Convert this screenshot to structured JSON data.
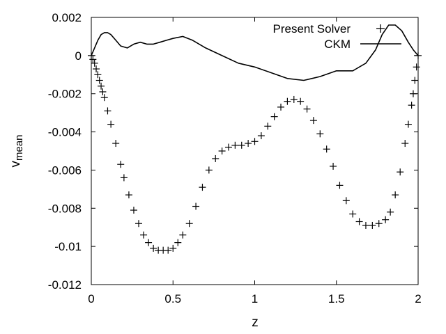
{
  "chart_data": {
    "type": "line",
    "xlabel": "z",
    "ylabel_main": "v",
    "ylabel_sub": "mean",
    "xlim": [
      0,
      2
    ],
    "ylim": [
      -0.012,
      0.002
    ],
    "xticks": [
      0,
      0.5,
      1,
      1.5,
      2
    ],
    "xtick_labels": [
      "0",
      "0.5",
      "1",
      "1.5",
      "2"
    ],
    "yticks": [
      0.002,
      0,
      -0.002,
      -0.004,
      -0.006,
      -0.008,
      -0.01,
      -0.012
    ],
    "ytick_labels": [
      "0.002",
      "0",
      "-0.002",
      "-0.004",
      "-0.006",
      "-0.008",
      "-0.01",
      "-0.012"
    ],
    "grid": false,
    "legend": "top-right",
    "colors": {
      "series": "#000000",
      "axes": "#000000",
      "background": "#ffffff"
    },
    "series": [
      {
        "name": "Present Solver",
        "marker": "plus",
        "x": [
          0.0,
          0.01,
          0.02,
          0.03,
          0.04,
          0.05,
          0.06,
          0.07,
          0.08,
          0.1,
          0.12,
          0.15,
          0.18,
          0.2,
          0.23,
          0.26,
          0.29,
          0.32,
          0.35,
          0.38,
          0.41,
          0.44,
          0.47,
          0.5,
          0.53,
          0.56,
          0.6,
          0.64,
          0.68,
          0.72,
          0.76,
          0.8,
          0.84,
          0.88,
          0.92,
          0.96,
          1.0,
          1.04,
          1.08,
          1.12,
          1.16,
          1.2,
          1.24,
          1.28,
          1.32,
          1.36,
          1.4,
          1.44,
          1.48,
          1.52,
          1.56,
          1.6,
          1.64,
          1.68,
          1.72,
          1.76,
          1.8,
          1.83,
          1.86,
          1.89,
          1.92,
          1.94,
          1.96,
          1.97,
          1.98,
          1.99,
          2.0
        ],
        "y": [
          0.0,
          -0.0002,
          -0.0004,
          -0.0007,
          -0.001,
          -0.0013,
          -0.0016,
          -0.0019,
          -0.0022,
          -0.0029,
          -0.0036,
          -0.0046,
          -0.0057,
          -0.0064,
          -0.0073,
          -0.0081,
          -0.0088,
          -0.0094,
          -0.0098,
          -0.0101,
          -0.0102,
          -0.0102,
          -0.0102,
          -0.0101,
          -0.0098,
          -0.0094,
          -0.0088,
          -0.0079,
          -0.0069,
          -0.006,
          -0.0054,
          -0.005,
          -0.0048,
          -0.0047,
          -0.0047,
          -0.0046,
          -0.0045,
          -0.0042,
          -0.0037,
          -0.0032,
          -0.0027,
          -0.0024,
          -0.0023,
          -0.0024,
          -0.0028,
          -0.0034,
          -0.0041,
          -0.0049,
          -0.0058,
          -0.0068,
          -0.0076,
          -0.0083,
          -0.0087,
          -0.0089,
          -0.0089,
          -0.0088,
          -0.0086,
          -0.0082,
          -0.0073,
          -0.0061,
          -0.0046,
          -0.0036,
          -0.0026,
          -0.002,
          -0.0013,
          -0.0006,
          0.0
        ]
      },
      {
        "name": "CKM",
        "marker": "line",
        "x": [
          0.0,
          0.02,
          0.04,
          0.06,
          0.08,
          0.1,
          0.12,
          0.15,
          0.18,
          0.22,
          0.26,
          0.3,
          0.34,
          0.38,
          0.42,
          0.46,
          0.5,
          0.56,
          0.62,
          0.7,
          0.8,
          0.9,
          1.0,
          1.1,
          1.2,
          1.3,
          1.35,
          1.4,
          1.5,
          1.6,
          1.68,
          1.74,
          1.78,
          1.82,
          1.86,
          1.9,
          1.94,
          1.97,
          2.0
        ],
        "y": [
          0.0,
          0.0004,
          0.0008,
          0.0011,
          0.0012,
          0.0012,
          0.0011,
          0.0008,
          0.0005,
          0.0004,
          0.0006,
          0.0007,
          0.0006,
          0.0006,
          0.0007,
          0.0008,
          0.0009,
          0.001,
          0.0008,
          0.0004,
          0.0,
          -0.0004,
          -0.0006,
          -0.0009,
          -0.0012,
          -0.0013,
          -0.0012,
          -0.0011,
          -0.0008,
          -0.0008,
          -0.0004,
          0.0003,
          0.0011,
          0.0016,
          0.0016,
          0.0013,
          0.0007,
          0.0003,
          0.0
        ]
      }
    ]
  }
}
